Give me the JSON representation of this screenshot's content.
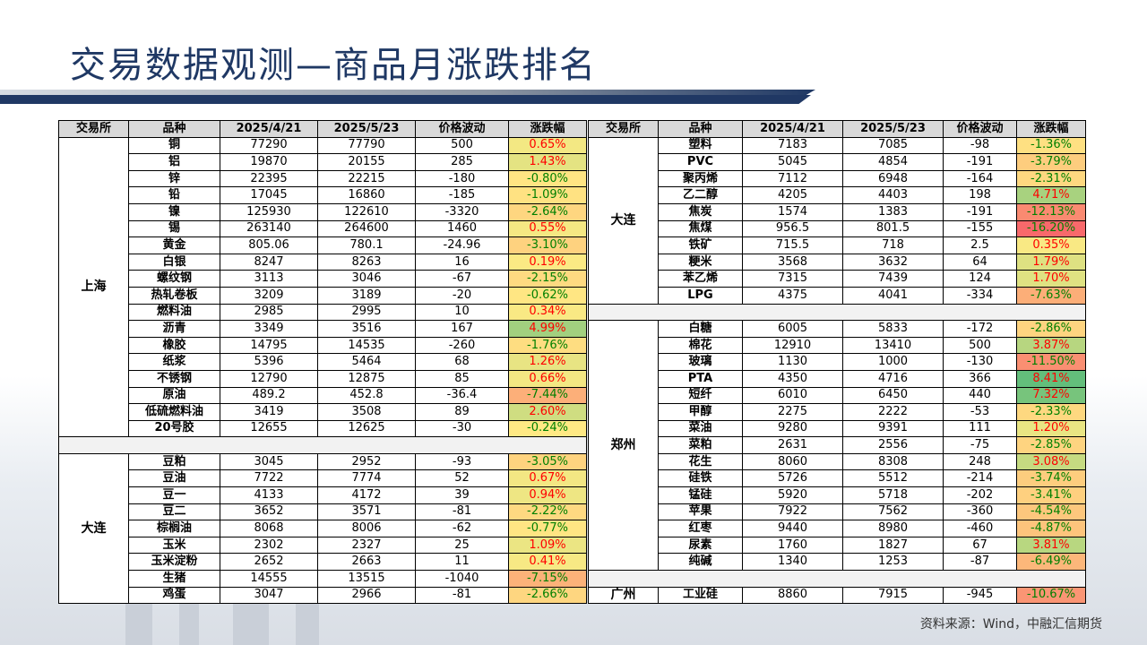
{
  "title": "交易数据观测—商品月涨跌排名",
  "source": "资料来源：Wind，中融汇信期货",
  "headers": [
    "交易所",
    "品种",
    "2025/4/21",
    "2025/5/23",
    "价格波动",
    "涨跌幅"
  ],
  "left_groups": [
    {
      "exchange": "上海",
      "rows": [
        [
          "铜",
          "77290",
          "77790",
          "500",
          "0.65%"
        ],
        [
          "铝",
          "19870",
          "20155",
          "285",
          "1.43%"
        ],
        [
          "锌",
          "22395",
          "22215",
          "-180",
          "-0.80%"
        ],
        [
          "铅",
          "17045",
          "16860",
          "-185",
          "-1.09%"
        ],
        [
          "镍",
          "125930",
          "122610",
          "-3320",
          "-2.64%"
        ],
        [
          "锡",
          "263140",
          "264600",
          "1460",
          "0.55%"
        ],
        [
          "黄金",
          "805.06",
          "780.1",
          "-24.96",
          "-3.10%"
        ],
        [
          "白银",
          "8247",
          "8263",
          "16",
          "0.19%"
        ],
        [
          "螺纹钢",
          "3113",
          "3046",
          "-67",
          "-2.15%"
        ],
        [
          "热轧卷板",
          "3209",
          "3189",
          "-20",
          "-0.62%"
        ],
        [
          "燃料油",
          "2985",
          "2995",
          "10",
          "0.34%"
        ],
        [
          "沥青",
          "3349",
          "3516",
          "167",
          "4.99%"
        ],
        [
          "橡胶",
          "14795",
          "14535",
          "-260",
          "-1.76%"
        ],
        [
          "纸浆",
          "5396",
          "5464",
          "68",
          "1.26%"
        ],
        [
          "不锈钢",
          "12790",
          "12875",
          "85",
          "0.66%"
        ],
        [
          "原油",
          "489.2",
          "452.8",
          "-36.4",
          "-7.44%"
        ],
        [
          "低硫燃料油",
          "3419",
          "3508",
          "89",
          "2.60%"
        ],
        [
          "20号胶",
          "12655",
          "12625",
          "-30",
          "-0.24%"
        ]
      ]
    },
    {
      "exchange": "大连",
      "rows": [
        [
          "豆粕",
          "3045",
          "2952",
          "-93",
          "-3.05%"
        ],
        [
          "豆油",
          "7722",
          "7774",
          "52",
          "0.67%"
        ],
        [
          "豆一",
          "4133",
          "4172",
          "39",
          "0.94%"
        ],
        [
          "豆二",
          "3652",
          "3571",
          "-81",
          "-2.22%"
        ],
        [
          "棕榈油",
          "8068",
          "8006",
          "-62",
          "-0.77%"
        ],
        [
          "玉米",
          "2302",
          "2327",
          "25",
          "1.09%"
        ],
        [
          "玉米淀粉",
          "2652",
          "2663",
          "11",
          "0.41%"
        ],
        [
          "生猪",
          "14555",
          "13515",
          "-1040",
          "-7.15%"
        ],
        [
          "鸡蛋",
          "3047",
          "2966",
          "-81",
          "-2.66%"
        ]
      ]
    }
  ],
  "right_groups": [
    {
      "exchange": "大连",
      "rows": [
        [
          "塑料",
          "7183",
          "7085",
          "-98",
          "-1.36%"
        ],
        [
          "PVC",
          "5045",
          "4854",
          "-191",
          "-3.79%"
        ],
        [
          "聚丙烯",
          "7112",
          "6948",
          "-164",
          "-2.31%"
        ],
        [
          "乙二醇",
          "4205",
          "4403",
          "198",
          "4.71%"
        ],
        [
          "焦炭",
          "1574",
          "1383",
          "-191",
          "-12.13%"
        ],
        [
          "焦煤",
          "956.5",
          "801.5",
          "-155",
          "-16.20%"
        ],
        [
          "铁矿",
          "715.5",
          "718",
          "2.5",
          "0.35%"
        ],
        [
          "粳米",
          "3568",
          "3632",
          "64",
          "1.79%"
        ],
        [
          "苯乙烯",
          "7315",
          "7439",
          "124",
          "1.70%"
        ],
        [
          "LPG",
          "4375",
          "4041",
          "-334",
          "-7.63%"
        ]
      ]
    },
    {
      "exchange": "郑州",
      "rows": [
        [
          "白糖",
          "6005",
          "5833",
          "-172",
          "-2.86%"
        ],
        [
          "棉花",
          "12910",
          "13410",
          "500",
          "3.87%"
        ],
        [
          "玻璃",
          "1130",
          "1000",
          "-130",
          "-11.50%"
        ],
        [
          "PTA",
          "4350",
          "4716",
          "366",
          "8.41%"
        ],
        [
          "短纤",
          "6010",
          "6450",
          "440",
          "7.32%"
        ],
        [
          "甲醇",
          "2275",
          "2222",
          "-53",
          "-2.33%"
        ],
        [
          "菜油",
          "9280",
          "9391",
          "111",
          "1.20%"
        ],
        [
          "菜粕",
          "2631",
          "2556",
          "-75",
          "-2.85%"
        ],
        [
          "花生",
          "8060",
          "8308",
          "248",
          "3.08%"
        ],
        [
          "硅铁",
          "5726",
          "5512",
          "-214",
          "-3.74%"
        ],
        [
          "锰硅",
          "5920",
          "5718",
          "-202",
          "-3.41%"
        ],
        [
          "苹果",
          "7922",
          "7562",
          "-360",
          "-4.54%"
        ],
        [
          "红枣",
          "9440",
          "8980",
          "-460",
          "-4.87%"
        ],
        [
          "尿素",
          "1760",
          "1827",
          "67",
          "3.81%"
        ],
        [
          "纯碱",
          "1340",
          "1253",
          "-87",
          "-6.49%"
        ]
      ]
    },
    {
      "exchange": "广州",
      "rows": [
        [
          "工业硅",
          "8860",
          "7915",
          "-945",
          "-10.67%"
        ]
      ]
    }
  ],
  "colors": {
    "title": "#1f3864",
    "max_up": "#63be7b",
    "neutral": "#ffeb84",
    "max_down": "#f8696b",
    "pos_text": "#ff0000",
    "neg_text": "#008000"
  }
}
